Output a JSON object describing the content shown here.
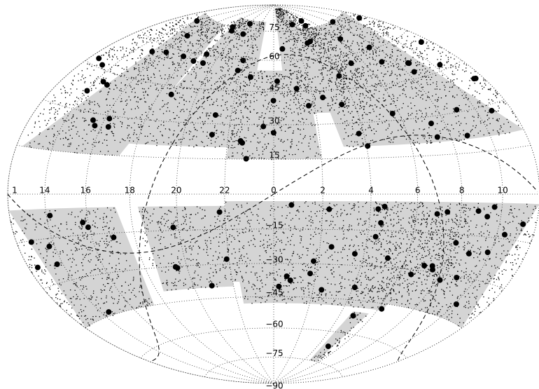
{
  "dec_labels": [
    "75",
    "60",
    "45",
    "30",
    "15",
    "−15",
    "−30",
    "−45",
    "−60",
    "−75",
    "−90"
  ],
  "ra_labels": [
    "1",
    "14",
    "16",
    "18",
    "20",
    "22",
    "0",
    "2",
    "4",
    "6",
    "8",
    "10"
  ]
}
